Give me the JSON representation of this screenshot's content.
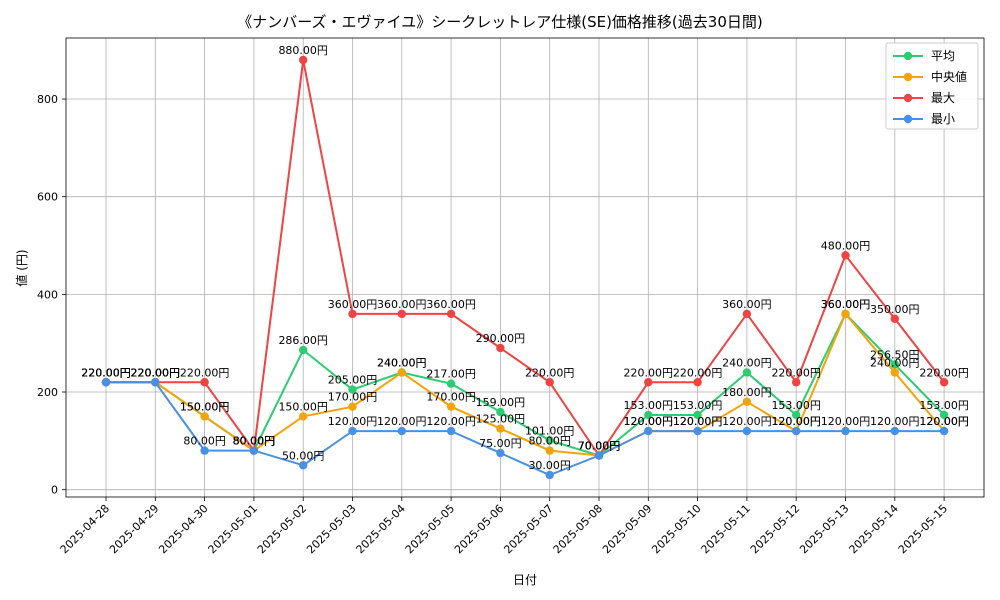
{
  "chart_data": {
    "type": "line",
    "title": "《ナンバーズ・エヴァイユ》シークレットレア仕様(SE)価格推移(過去30日間)",
    "xlabel": "日付",
    "ylabel": "値 (円)",
    "ylim": [
      -15,
      925
    ],
    "yticks": [
      0,
      200,
      400,
      600,
      800
    ],
    "grid": true,
    "legend_position": "top-right",
    "x": [
      "2025-04-28",
      "2025-04-29",
      "2025-04-30",
      "2025-05-01",
      "2025-05-02",
      "2025-05-03",
      "2025-05-04",
      "2025-05-05",
      "2025-05-06",
      "2025-05-07",
      "2025-05-08",
      "2025-05-09",
      "2025-05-10",
      "2025-05-11",
      "2025-05-12",
      "2025-05-13",
      "2025-05-14",
      "2025-05-15"
    ],
    "series": [
      {
        "name": "平均",
        "color": "#2ecc71",
        "values": [
          220,
          220,
          150,
          80,
          286,
          205,
          240,
          217,
          159,
          101,
          70,
          153,
          153,
          240,
          153,
          360,
          256.5,
          153
        ],
        "labels": [
          "220.00円",
          "220.00円",
          "150.00円",
          "80.00円",
          "286.00円",
          "205.00円",
          "240.00円",
          "217.00円",
          "159.00円",
          "101.00円",
          "70.00円",
          "153.00円",
          "153.00円",
          "240.00円",
          "153.00円",
          "360.00円",
          "256.50円",
          "153.00円"
        ]
      },
      {
        "name": "中央値",
        "color": "#f5a30a",
        "values": [
          220,
          220,
          150,
          80,
          150,
          170,
          240,
          170,
          125,
          80,
          70,
          120,
          120,
          180,
          120,
          360,
          240,
          120
        ],
        "labels": [
          "220.00円",
          "220.00円",
          "150.00円",
          "80.00円",
          "150.00円",
          "170.00円",
          "240.00円",
          "170.00円",
          "125.00円",
          "80.00円",
          "70.00円",
          "120.00円",
          "120.00円",
          "180.00円",
          "120.00円",
          "360.00円",
          "240.00円",
          "120.00円"
        ]
      },
      {
        "name": "最大",
        "color": "#ef4444",
        "values": [
          220,
          220,
          220,
          80,
          880,
          360,
          360,
          360,
          290,
          220,
          70,
          220,
          220,
          360,
          220,
          480,
          350,
          220
        ],
        "labels": [
          "220.00円",
          "220.00円",
          "220.00円",
          "80.00円",
          "880.00円",
          "360.00円",
          "360.00円",
          "360.00円",
          "290.00円",
          "220.00円",
          "70.00円",
          "220.00円",
          "220.00円",
          "360.00円",
          "220.00円",
          "480.00円",
          "350.00円",
          "220.00円"
        ]
      },
      {
        "name": "最小",
        "color": "#4a90e2",
        "values": [
          220,
          220,
          80,
          80,
          50,
          120,
          120,
          120,
          75,
          30,
          70,
          120,
          120,
          120,
          120,
          120,
          120,
          120
        ],
        "labels": [
          "220.00円",
          "220.00円",
          "80.00円",
          "80.00円",
          "50.00円",
          "120.00円",
          "120.00円",
          "120.00円",
          "75.00円",
          "30.00円",
          "70.00円",
          "120.00円",
          "120.00円",
          "120.00円",
          "120.00円",
          "120.00円",
          "120.00円",
          "120.00円"
        ]
      }
    ]
  }
}
